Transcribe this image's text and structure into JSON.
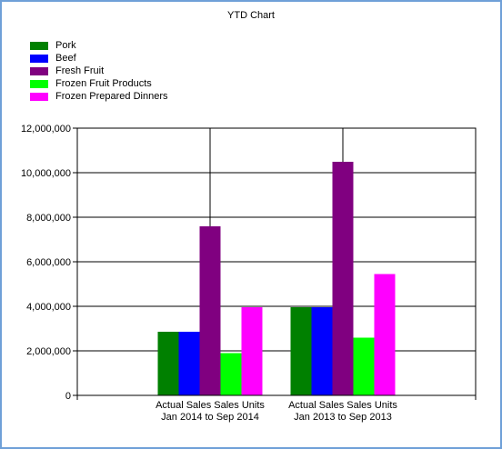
{
  "chart_data": {
    "type": "bar",
    "title": "YTD Chart",
    "categories": [
      [
        "Actual Sales Sales Units",
        "Jan 2014 to Sep 2014"
      ],
      [
        "Actual Sales Sales Units",
        "Jan 2013 to Sep 2013"
      ]
    ],
    "series": [
      {
        "name": "Pork",
        "color": "#008000",
        "values": [
          2850000,
          3950000
        ]
      },
      {
        "name": "Beef",
        "color": "#0000ff",
        "values": [
          2850000,
          3950000
        ]
      },
      {
        "name": "Fresh Fruit",
        "color": "#800080",
        "values": [
          7600000,
          10500000
        ]
      },
      {
        "name": "Frozen Fruit Products",
        "color": "#00ff00",
        "values": [
          1900000,
          2600000
        ]
      },
      {
        "name": "Frozen Prepared Dinners",
        "color": "#ff00ff",
        "values": [
          3950000,
          5450000
        ]
      }
    ],
    "ylim": [
      0,
      12000000
    ],
    "yticks": [
      0,
      2000000,
      4000000,
      6000000,
      8000000,
      10000000,
      12000000
    ],
    "ytick_labels": [
      "0",
      "2,000,000",
      "4,000,000",
      "6,000,000",
      "8,000,000",
      "10,000,000",
      "12,000,000"
    ],
    "grid": true,
    "legend_position": "top-left"
  }
}
